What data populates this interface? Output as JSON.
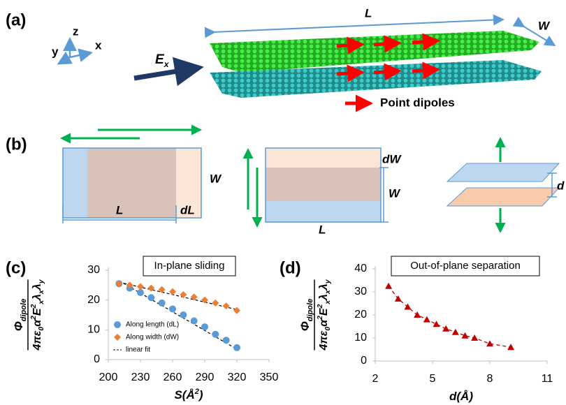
{
  "figure": {
    "panel_labels": [
      "(a)",
      "(b)",
      "(c)",
      "(d)"
    ]
  },
  "diagram": {
    "a": {
      "axis_z": "z",
      "axis_x": "x",
      "axis_y": "y",
      "field": "E",
      "field_sub": "x",
      "length": "L",
      "width": "W",
      "dipole_legend": "Point dipoles"
    },
    "b": {
      "left_W": "W",
      "left_L": "L",
      "left_dL": "dL",
      "mid_dW": "dW",
      "mid_W": "W",
      "mid_L": "L",
      "right_d": "d"
    }
  },
  "chart_data": [
    {
      "type": "scatter",
      "title": "In-plane sliding",
      "ylabel": {
        "numerator": [
          {
            "text": "Φ"
          },
          {
            "sub": "dipole"
          }
        ],
        "denominator": [
          {
            "text": "4πε"
          },
          {
            "sub": "0"
          },
          {
            "text": "α"
          },
          {
            "sup": "2"
          },
          {
            "text": "E"
          },
          {
            "sup": "2"
          },
          {
            "sub": "x"
          },
          {
            "text": "λ"
          },
          {
            "sub": "x"
          },
          {
            "text": "λ"
          },
          {
            "sub": "y"
          }
        ]
      },
      "xlabel": [
        {
          "text": "S"
        },
        {
          "text": "(Å"
        },
        {
          "sup": "2"
        },
        {
          "text": ")"
        }
      ],
      "xlim": [
        200,
        350
      ],
      "xticks": [
        200,
        230,
        260,
        290,
        320,
        350
      ],
      "ylim": [
        0,
        30
      ],
      "yticks": [
        0,
        10,
        20,
        30
      ],
      "series": [
        {
          "name": "Along length (dL)",
          "color": "#5b9bd5",
          "marker": "circle",
          "x": [
            210,
            220,
            230,
            240,
            250,
            260,
            270,
            280,
            290,
            300,
            310,
            320
          ],
          "values": [
            25.5,
            24,
            22.5,
            20.8,
            19,
            17,
            15,
            13,
            11,
            8.5,
            6.5,
            4
          ]
        },
        {
          "name": "Along width (dW)",
          "color": "#ed7d31",
          "marker": "diamond",
          "x": [
            210,
            220,
            230,
            240,
            250,
            260,
            270,
            280,
            290,
            300,
            310,
            320
          ],
          "values": [
            25.5,
            25,
            24.5,
            24,
            23.5,
            22.8,
            21.8,
            21,
            20,
            19,
            18,
            16.5
          ]
        }
      ],
      "fit": {
        "name": "linear fit",
        "color": "#000000",
        "lines": [
          {
            "x": [
              210,
              320
            ],
            "values": [
              26.5,
              3.5
            ]
          },
          {
            "x": [
              210,
              320
            ],
            "values": [
              26,
              16.8
            ]
          }
        ]
      }
    },
    {
      "type": "scatter",
      "title": "Out-of-plane separation",
      "ylabel": {
        "numerator": [
          {
            "text": "Φ"
          },
          {
            "sub": "dipole"
          }
        ],
        "denominator": [
          {
            "text": "4πε"
          },
          {
            "sub": "0"
          },
          {
            "text": "α"
          },
          {
            "sup": "2"
          },
          {
            "text": "E"
          },
          {
            "sup": "2"
          },
          {
            "sub": "x"
          },
          {
            "text": "λ"
          },
          {
            "sub": "x"
          },
          {
            "text": "λ"
          },
          {
            "sub": "y"
          }
        ]
      },
      "xlabel": [
        {
          "text": "d"
        },
        {
          "text": "(Å)"
        }
      ],
      "xlim": [
        2,
        11
      ],
      "xticks": [
        2,
        5,
        8,
        11
      ],
      "ylim": [
        0,
        40
      ],
      "yticks": [
        0,
        10,
        20,
        30,
        40
      ],
      "series": [
        {
          "color": "#c00000",
          "marker": "triangle",
          "line": "dashed",
          "x": [
            2.7,
            3.2,
            3.7,
            4.2,
            4.7,
            5.2,
            5.7,
            6.2,
            6.7,
            7.2,
            8.0,
            9.1
          ],
          "values": [
            32.5,
            27,
            23.5,
            20,
            18,
            16,
            14,
            12.5,
            11,
            10,
            7.5,
            6
          ]
        }
      ]
    }
  ]
}
